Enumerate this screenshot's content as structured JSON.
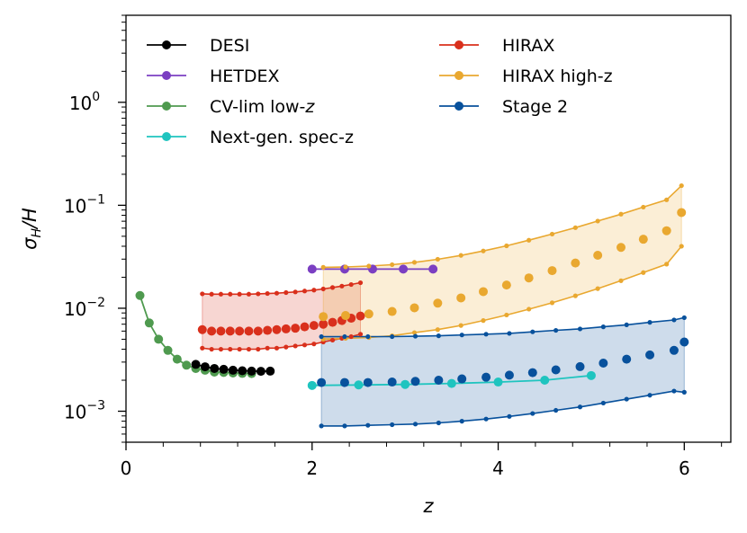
{
  "chart_data": {
    "type": "line",
    "yscale": "log",
    "xlabel": "z",
    "ylabel": "σ_H/H",
    "ylabel_main": "σ",
    "ylabel_sub": "H",
    "ylabel_rest": "/H",
    "xlim": [
      0,
      6.5
    ],
    "ylim": [
      0.0005,
      7.0
    ],
    "x_ticks": [
      0,
      2,
      4,
      6
    ],
    "x_tick_labels": [
      "0",
      "2",
      "4",
      "6"
    ],
    "y_tick_labels": [
      {
        "value": 1.0,
        "base": "10",
        "exp": "0"
      },
      {
        "value": 0.1,
        "base": "10",
        "exp": "−1"
      },
      {
        "value": 0.01,
        "base": "10",
        "exp": "−2"
      },
      {
        "value": 0.001,
        "base": "10",
        "exp": "−3"
      }
    ],
    "colors": {
      "DESI": "#000000",
      "HETDEX": "#7b3fc2",
      "CVlim": "#4f9a4f",
      "NextGen": "#1fc4bf",
      "HIRAX": "#d9301c",
      "HIRAXhigh": "#e9a830",
      "Stage2": "#08519c"
    },
    "legend": [
      {
        "label": "DESI",
        "key": "DESI"
      },
      {
        "label": "HETDEX",
        "key": "HETDEX"
      },
      {
        "label": "CV-lim low-",
        "label_italic": "z",
        "key": "CVlim"
      },
      {
        "label": "Next-gen. spec-z",
        "key": "NextGen"
      },
      {
        "label": "HIRAX",
        "key": "HIRAX"
      },
      {
        "label": "HIRAX high-z",
        "key": "HIRAXhigh"
      },
      {
        "label": "Stage 2",
        "key": "Stage2"
      }
    ],
    "series": [
      {
        "name": "CV-lim low-z",
        "key": "CVlim",
        "line": true,
        "marker_r": 5,
        "x": [
          0.15,
          0.25,
          0.35,
          0.45,
          0.55,
          0.65,
          0.75,
          0.85,
          0.95,
          1.05,
          1.15,
          1.25,
          1.35
        ],
        "y": [
          0.0133,
          0.0072,
          0.005,
          0.0039,
          0.0032,
          0.0028,
          0.0026,
          0.0025,
          0.0024,
          0.00238,
          0.00235,
          0.00233,
          0.00232
        ]
      },
      {
        "name": "DESI",
        "key": "DESI",
        "line": true,
        "marker_r": 5,
        "x": [
          0.75,
          0.85,
          0.95,
          1.05,
          1.15,
          1.25,
          1.35,
          1.45,
          1.55
        ],
        "y": [
          0.00285,
          0.0027,
          0.0026,
          0.00255,
          0.0025,
          0.00247,
          0.00245,
          0.00244,
          0.00245
        ]
      },
      {
        "name": "HETDEX",
        "key": "HETDEX",
        "line": true,
        "marker_r": 5,
        "x": [
          2.0,
          2.35,
          2.65,
          2.98,
          3.3
        ],
        "y": [
          0.024,
          0.024,
          0.024,
          0.024,
          0.024
        ]
      },
      {
        "name": "Next-gen. spec-z",
        "key": "NextGen",
        "line": true,
        "marker_r": 5,
        "x": [
          2.0,
          2.5,
          3.0,
          3.5,
          4.0,
          4.5,
          5.0
        ],
        "y": [
          0.00178,
          0.0018,
          0.00182,
          0.00186,
          0.00192,
          0.002,
          0.00222
        ]
      },
      {
        "name": "HIRAX",
        "key": "HIRAX",
        "line": false,
        "marker_r": 5,
        "x": [
          0.82,
          0.92,
          1.02,
          1.12,
          1.22,
          1.32,
          1.42,
          1.52,
          1.62,
          1.72,
          1.82,
          1.92,
          2.02,
          2.12,
          2.22,
          2.32,
          2.42,
          2.52
        ],
        "y": [
          0.0062,
          0.006,
          0.006,
          0.006,
          0.006,
          0.006,
          0.006,
          0.0061,
          0.0062,
          0.0063,
          0.0064,
          0.0066,
          0.0068,
          0.007,
          0.0073,
          0.0076,
          0.008,
          0.0084
        ],
        "band": {
          "lower": [
            0.0041,
            0.004,
            0.004,
            0.004,
            0.004,
            0.004,
            0.004,
            0.0041,
            0.0041,
            0.0042,
            0.0043,
            0.0044,
            0.0045,
            0.0047,
            0.0049,
            0.0051,
            0.0053,
            0.0056
          ],
          "upper": [
            0.0138,
            0.0137,
            0.0137,
            0.0137,
            0.0137,
            0.0137,
            0.0138,
            0.0139,
            0.014,
            0.0142,
            0.0144,
            0.0147,
            0.015,
            0.0154,
            0.0159,
            0.0164,
            0.017,
            0.0177
          ],
          "alpha": 0.2
        }
      },
      {
        "name": "HIRAX high-z",
        "key": "HIRAXhigh",
        "line": false,
        "marker_r": 5,
        "x": [
          2.12,
          2.36,
          2.61,
          2.86,
          3.1,
          3.35,
          3.6,
          3.84,
          4.09,
          4.33,
          4.58,
          4.83,
          5.07,
          5.32,
          5.56,
          5.81,
          5.97
        ],
        "y": [
          0.0083,
          0.0085,
          0.0088,
          0.0093,
          0.0101,
          0.0112,
          0.0126,
          0.0145,
          0.0168,
          0.0197,
          0.0232,
          0.0275,
          0.0327,
          0.039,
          0.0468,
          0.0566,
          0.085
        ],
        "band": {
          "lower": [
            0.005,
            0.0051,
            0.0052,
            0.0054,
            0.0058,
            0.0062,
            0.0068,
            0.0076,
            0.0086,
            0.0098,
            0.0113,
            0.0132,
            0.0155,
            0.0185,
            0.0222,
            0.0268,
            0.04
          ],
          "upper": [
            0.025,
            0.0252,
            0.0257,
            0.0265,
            0.0279,
            0.0299,
            0.0326,
            0.036,
            0.0404,
            0.0458,
            0.0525,
            0.0606,
            0.0703,
            0.082,
            0.096,
            0.113,
            0.155
          ],
          "alpha": 0.2
        },
        "band_markers": true
      },
      {
        "name": "Stage 2",
        "key": "Stage2",
        "line": false,
        "marker_r": 5,
        "x": [
          2.1,
          2.35,
          2.6,
          2.86,
          3.11,
          3.36,
          3.61,
          3.87,
          4.12,
          4.37,
          4.62,
          4.88,
          5.13,
          5.38,
          5.63,
          5.89,
          6.0
        ],
        "y": [
          0.0019,
          0.0019,
          0.0019,
          0.00192,
          0.00195,
          0.002,
          0.00206,
          0.00214,
          0.00224,
          0.00237,
          0.00252,
          0.00271,
          0.00293,
          0.0032,
          0.00352,
          0.0039,
          0.0047
        ],
        "band": {
          "lower": [
            0.00072,
            0.00072,
            0.00073,
            0.00074,
            0.00075,
            0.00077,
            0.0008,
            0.00084,
            0.00089,
            0.00095,
            0.00102,
            0.0011,
            0.0012,
            0.00131,
            0.00143,
            0.00157,
            0.00153
          ],
          "upper": [
            0.0053,
            0.0053,
            0.0053,
            0.0053,
            0.00535,
            0.0054,
            0.0055,
            0.0056,
            0.0057,
            0.0059,
            0.0061,
            0.0063,
            0.0066,
            0.0069,
            0.0073,
            0.0077,
            0.0081
          ],
          "alpha": 0.2
        },
        "band_markers": true
      }
    ]
  }
}
